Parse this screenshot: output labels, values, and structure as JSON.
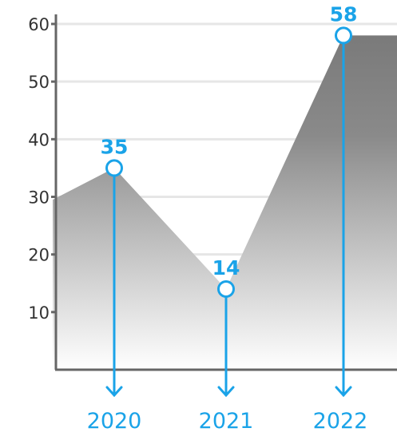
{
  "chart_data": {
    "type": "area",
    "categories": [
      "2020",
      "2021",
      "2022"
    ],
    "values": [
      35,
      14,
      58
    ],
    "data_labels": [
      "35",
      "14",
      "58"
    ],
    "ylim": [
      0,
      60
    ],
    "yticks": [
      "10",
      "20",
      "30",
      "40",
      "50",
      "60"
    ],
    "grid": true,
    "title": "",
    "xlabel": "",
    "ylabel": "",
    "colors": {
      "accent": "#1aa3e8",
      "area_top": "#7a7a7a",
      "area_bottom": "#ffffff",
      "grid": "#e6e6e6",
      "axis": "#666666"
    }
  }
}
